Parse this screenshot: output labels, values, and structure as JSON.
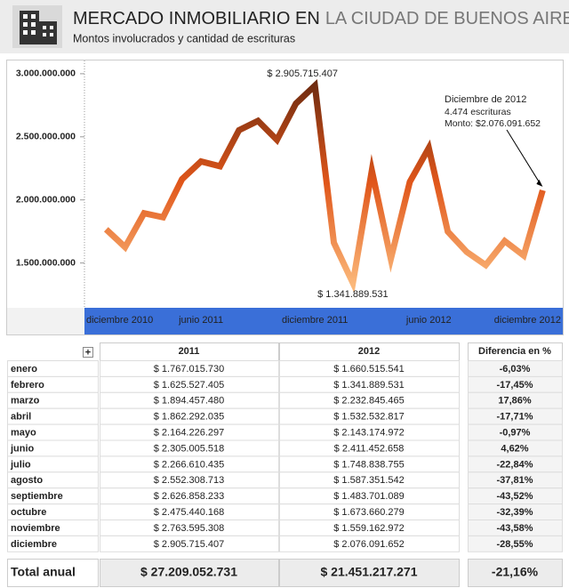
{
  "header": {
    "title": "MERCADO INMOBILIARIO EN",
    "title_highlight": "LA CIUDAD DE BUENOS AIRES",
    "subtitle": "Montos involucrados y cantidad de escrituras"
  },
  "chart_data": {
    "type": "line",
    "categories": [
      "diciembre 2010",
      null,
      null,
      null,
      null,
      null,
      "junio 2011",
      null,
      null,
      null,
      null,
      null,
      "diciembre 2011",
      null,
      null,
      null,
      null,
      null,
      "junio 2012",
      null,
      null,
      null,
      null,
      null,
      "diciembre 2012"
    ],
    "values": [
      null,
      1767015730,
      1625527405,
      1894457480,
      1862292035,
      2164226297,
      2305005518,
      2266610435,
      2552308713,
      2626858233,
      2475440168,
      2763595308,
      2905715407,
      1660515541,
      1341889531,
      2232845465,
      1532532817,
      2143174972,
      2411452658,
      1748838755,
      1587351542,
      1483701089,
      1673660279,
      1559162972,
      2076091652
    ],
    "colors": [
      "#6b2a10",
      "#e0561a",
      "#fbb87a"
    ],
    "ylim": [
      1145000000,
      3105000000
    ],
    "yticks": [
      {
        "value": 1500000000,
        "label": "1.500.000.000"
      },
      {
        "value": 2000000000,
        "label": "2.000.000.000"
      },
      {
        "value": 2500000000,
        "label": "2.500.000.000"
      },
      {
        "value": 3000000000,
        "label": "3.000.000.000"
      }
    ],
    "annotations": {
      "max": "$ 2.905.715.407",
      "min": "$ 1.341.889.531",
      "callout": {
        "title": "Diciembre de 2012",
        "count": "4.474 escrituras",
        "amount": "Monto: $2.076.091.652"
      }
    }
  },
  "table": {
    "expand_button": "+",
    "columns": [
      "2011",
      "2012",
      "Diferencia en %"
    ],
    "rows": [
      [
        "enero",
        "$ 1.767.015.730",
        "$ 1.660.515.541",
        "-6,03%"
      ],
      [
        "febrero",
        "$ 1.625.527.405",
        "$ 1.341.889.531",
        "-17,45%"
      ],
      [
        "marzo",
        "$ 1.894.457.480",
        "$ 2.232.845.465",
        "17,86%"
      ],
      [
        "abril",
        "$ 1.862.292.035",
        "$ 1.532.532.817",
        "-17,71%"
      ],
      [
        "mayo",
        "$ 2.164.226.297",
        "$ 2.143.174.972",
        "-0,97%"
      ],
      [
        "junio",
        "$ 2.305.005.518",
        "$ 2.411.452.658",
        "4,62%"
      ],
      [
        "julio",
        "$ 2.266.610.435",
        "$ 1.748.838.755",
        "-22,84%"
      ],
      [
        "agosto",
        "$ 2.552.308.713",
        "$ 1.587.351.542",
        "-37,81%"
      ],
      [
        "septiembre",
        "$ 2.626.858.233",
        "$ 1.483.701.089",
        "-43,52%"
      ],
      [
        "octubre",
        "$ 2.475.440.168",
        "$ 1.673.660.279",
        "-32,39%"
      ],
      [
        "noviembre",
        "$ 2.763.595.308",
        "$ 1.559.162.972",
        "-43,58%"
      ],
      [
        "diciembre",
        "$ 2.905.715.407",
        "$ 2.076.091.652",
        "-28,55%"
      ]
    ],
    "total": [
      "Total anual",
      "$ 27.209.052.731",
      "$ 21.451.217.271",
      "-21,16%"
    ]
  }
}
